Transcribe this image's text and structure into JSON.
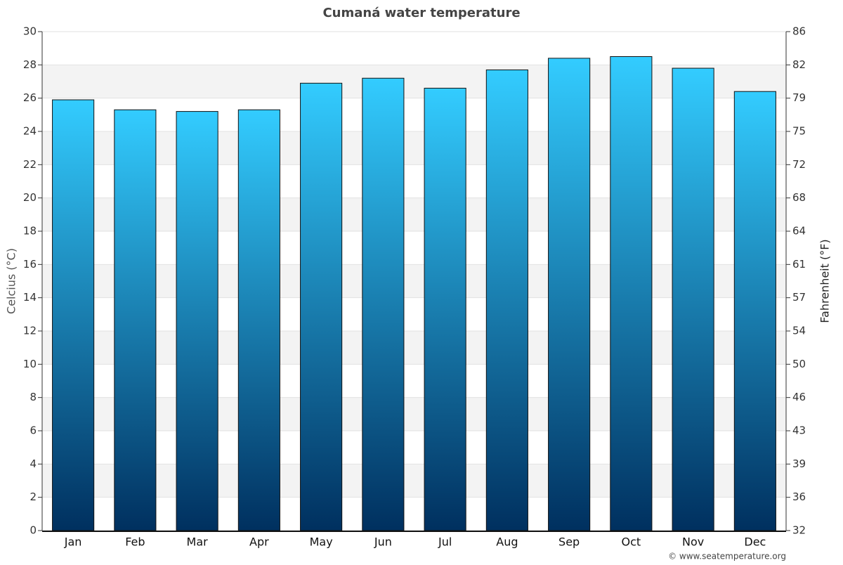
{
  "chart_data": {
    "type": "bar",
    "title": "Cumaná water temperature",
    "y_label": "Celcius (°C)",
    "y2_label": "Fahrenheit (°F)",
    "categories": [
      "Jan",
      "Feb",
      "Mar",
      "Apr",
      "May",
      "Jun",
      "Jul",
      "Aug",
      "Sep",
      "Oct",
      "Nov",
      "Dec"
    ],
    "values": [
      25.9,
      25.3,
      25.2,
      25.3,
      26.9,
      27.2,
      26.6,
      27.7,
      28.4,
      28.5,
      27.8,
      26.4
    ],
    "gradient": [
      "#33ccff",
      "#00305f"
    ],
    "ylim": [
      0,
      30
    ],
    "yticks": [
      0,
      2,
      4,
      6,
      8,
      10,
      12,
      14,
      16,
      18,
      20,
      22,
      24,
      26,
      28,
      30
    ],
    "y2lim": [
      32,
      86
    ],
    "y2ticks": [
      32,
      {
        "value": 35.6,
        "label": "36"
      },
      {
        "value": 39.2,
        "label": "39"
      },
      {
        "value": 42.8,
        "label": "43"
      },
      {
        "value": 46.4,
        "label": "46"
      },
      50,
      {
        "value": 53.6,
        "label": "54"
      },
      {
        "value": 57.2,
        "label": "57"
      },
      {
        "value": 60.8,
        "label": "61"
      },
      {
        "value": 64.4,
        "label": "64"
      },
      68,
      {
        "value": 71.6,
        "label": "72"
      },
      {
        "value": 75.2,
        "label": "75"
      },
      {
        "value": 78.8,
        "label": "79"
      },
      {
        "value": 82.4,
        "label": "82"
      },
      86
    ],
    "grid": true,
    "credit": "© www.seatemperature.org"
  }
}
